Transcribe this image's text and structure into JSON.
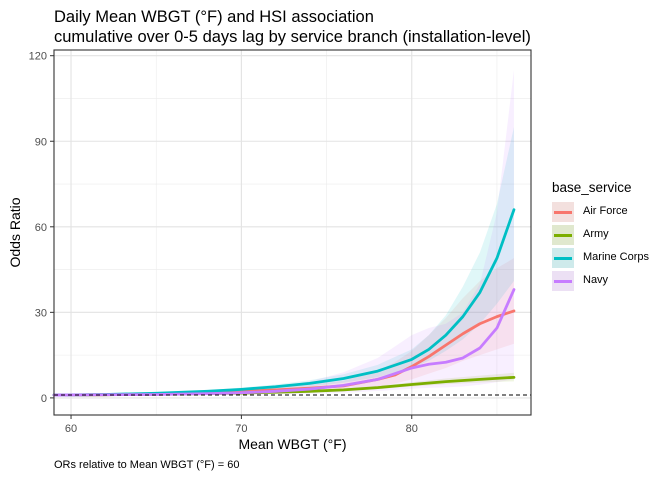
{
  "chart_data": {
    "type": "line",
    "title": "Daily Mean WBGT (°F) and HSI association",
    "subtitle": "cumulative over 0-5 days lag by service branch (installation-level)",
    "xlabel": "Mean WBGT (°F)",
    "ylabel": "Odds Ratio",
    "caption": "ORs relative to Mean WBGT (°F) = 60",
    "xlim": [
      59,
      87
    ],
    "ylim": [
      -6,
      122
    ],
    "x_ticks": [
      60,
      70,
      80
    ],
    "y_ticks": [
      0,
      30,
      60,
      90,
      120
    ],
    "grid": true,
    "reference_line": {
      "y": 1,
      "style": "dashed"
    },
    "legend": {
      "title": "base_service",
      "placement": "right"
    },
    "series": [
      {
        "name": "Air Force",
        "color": "#F8766D",
        "x": [
          59,
          62,
          65,
          68,
          70,
          72,
          74,
          76,
          78,
          79,
          80,
          81,
          82,
          83,
          84,
          85,
          86
        ],
        "y": [
          1,
          1.1,
          1.4,
          1.9,
          2.3,
          2.8,
          3.4,
          4.2,
          6.5,
          8,
          11,
          14.5,
          18.5,
          22.5,
          26,
          28.5,
          30.5
        ],
        "lower": [
          0.9,
          1,
          1.2,
          1.5,
          1.8,
          2.1,
          2.4,
          2.9,
          4,
          5,
          6.5,
          8.5,
          10.5,
          13,
          15,
          17,
          19
        ],
        "upper": [
          1.1,
          1.3,
          1.7,
          2.3,
          2.8,
          3.6,
          4.6,
          6,
          9.5,
          12.5,
          16.5,
          22,
          28,
          35,
          41,
          45.5,
          49
        ]
      },
      {
        "name": "Army",
        "color": "#7CAE00",
        "x": [
          59,
          62,
          65,
          68,
          70,
          72,
          74,
          76,
          78,
          80,
          82,
          84,
          86
        ],
        "y": [
          1,
          1.1,
          1.3,
          1.5,
          1.7,
          2,
          2.3,
          2.8,
          3.6,
          4.7,
          5.7,
          6.5,
          7.2
        ],
        "lower": [
          0.9,
          1,
          1.2,
          1.4,
          1.5,
          1.8,
          2,
          2.4,
          3.1,
          4,
          4.8,
          5.4,
          5.8
        ],
        "upper": [
          1.1,
          1.2,
          1.4,
          1.7,
          1.9,
          2.2,
          2.6,
          3.2,
          4.2,
          5.5,
          6.8,
          7.8,
          8.8
        ]
      },
      {
        "name": "Marine Corps",
        "color": "#00BFC4",
        "x": [
          59,
          62,
          65,
          68,
          70,
          72,
          74,
          76,
          78,
          80,
          81,
          82,
          83,
          84,
          85,
          86
        ],
        "y": [
          1,
          1.2,
          1.6,
          2.3,
          3,
          3.9,
          5.1,
          6.8,
          9.4,
          13.5,
          17,
          22,
          28.5,
          37,
          49,
          66
        ],
        "lower": [
          0.9,
          1.1,
          1.4,
          1.9,
          2.4,
          3.1,
          4,
          5.3,
          7.3,
          10.5,
          13,
          16.5,
          20.5,
          26,
          33,
          41
        ],
        "upper": [
          1.1,
          1.3,
          1.8,
          2.7,
          3.6,
          4.7,
          6.2,
          8.3,
          11.6,
          17,
          22,
          29,
          39,
          51,
          68,
          95
        ]
      },
      {
        "name": "Navy",
        "color": "#C77CFF",
        "x": [
          59,
          62,
          65,
          68,
          70,
          72,
          74,
          76,
          78,
          79,
          80,
          81,
          82,
          83,
          84,
          85,
          86
        ],
        "y": [
          1,
          1.1,
          1.2,
          1.5,
          1.8,
          2.3,
          3.1,
          4.4,
          6.5,
          8.5,
          10.5,
          11.8,
          12.5,
          14,
          17.5,
          24.5,
          38
        ],
        "lower": [
          0.9,
          1,
          1,
          1.1,
          1.2,
          1.3,
          1.5,
          1.8,
          2.4,
          2.8,
          3.2,
          3.5,
          3.7,
          4,
          4.6,
          5.5,
          6.5
        ],
        "upper": [
          1.1,
          1.3,
          1.5,
          2.1,
          2.7,
          3.8,
          5.8,
          9,
          14,
          18,
          22,
          24.5,
          26,
          30,
          40,
          65,
          115
        ]
      }
    ]
  }
}
